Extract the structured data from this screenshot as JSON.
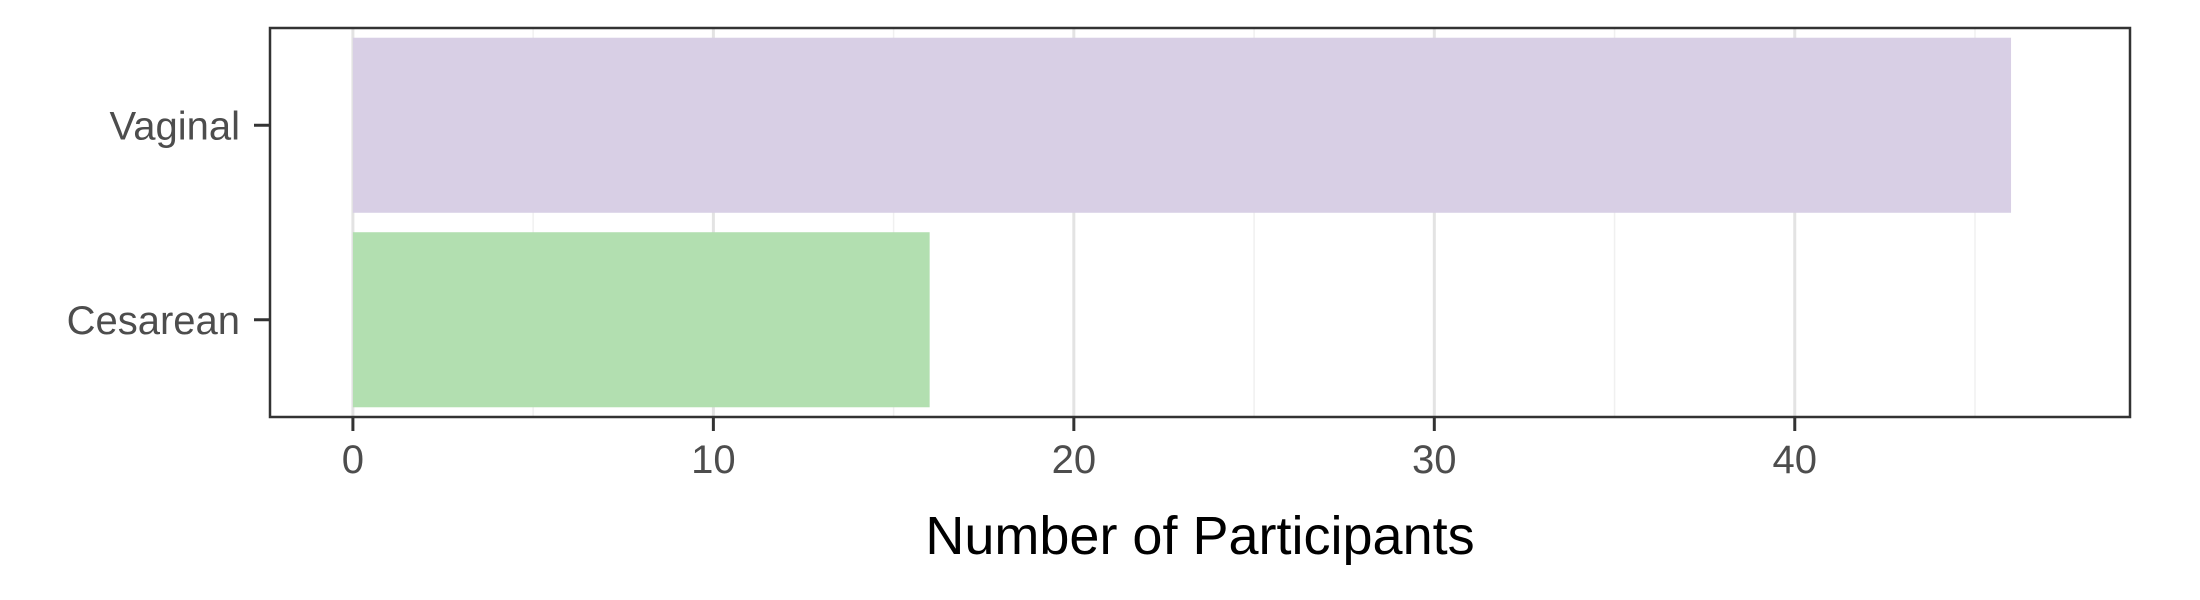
{
  "chart_data": {
    "type": "bar",
    "orientation": "horizontal",
    "categories": [
      "Vaginal",
      "Cesarean"
    ],
    "values": [
      46,
      16
    ],
    "colors": [
      "#d8cfe5",
      "#b2dfb0"
    ],
    "xlabel": "Number of Participants",
    "ylabel": "",
    "xlim": [
      -2.3,
      49.3
    ],
    "xticks": [
      0,
      10,
      20,
      30,
      40
    ],
    "xtick_labels": [
      "0",
      "10",
      "20",
      "30",
      "40"
    ],
    "minor_gridlines": [
      5,
      15,
      25,
      35,
      45
    ],
    "grid": true,
    "legend": "none",
    "colors_theme": {
      "panel_border": "#333333",
      "major_grid": "#e3e3e3",
      "minor_grid": "#f0f0f0",
      "tick": "#333333"
    }
  }
}
